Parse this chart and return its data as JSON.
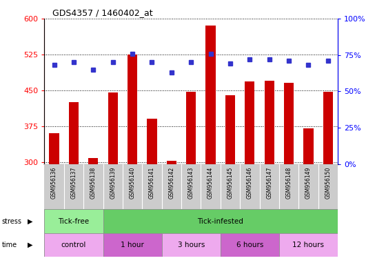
{
  "title": "GDS4357 / 1460402_at",
  "samples": [
    "GSM956136",
    "GSM956137",
    "GSM956138",
    "GSM956139",
    "GSM956140",
    "GSM956141",
    "GSM956142",
    "GSM956143",
    "GSM956144",
    "GSM956145",
    "GSM956146",
    "GSM956147",
    "GSM956148",
    "GSM956149",
    "GSM956150"
  ],
  "counts": [
    360,
    425,
    308,
    445,
    525,
    390,
    302,
    447,
    585,
    440,
    468,
    470,
    465,
    370,
    447
  ],
  "percentiles": [
    68,
    70,
    65,
    70,
    76,
    70,
    63,
    70,
    76,
    69,
    72,
    72,
    71,
    68,
    71
  ],
  "ylim_left": [
    295,
    600
  ],
  "ylim_right": [
    0,
    100
  ],
  "yticks_left": [
    300,
    375,
    450,
    525,
    600
  ],
  "yticks_right": [
    0,
    25,
    50,
    75,
    100
  ],
  "bar_color": "#cc0000",
  "dot_color": "#3333cc",
  "bar_width": 0.5,
  "stress_groups": [
    {
      "label": "Tick-free",
      "start": 0,
      "end": 3,
      "color": "#99ee99"
    },
    {
      "label": "Tick-infested",
      "start": 3,
      "end": 15,
      "color": "#66cc66"
    }
  ],
  "time_groups": [
    {
      "label": "control",
      "start": 0,
      "end": 3,
      "color": "#eeaaee"
    },
    {
      "label": "1 hour",
      "start": 3,
      "end": 6,
      "color": "#cc66cc"
    },
    {
      "label": "3 hours",
      "start": 6,
      "end": 9,
      "color": "#eeaaee"
    },
    {
      "label": "6 hours",
      "start": 9,
      "end": 12,
      "color": "#cc66cc"
    },
    {
      "label": "12 hours",
      "start": 12,
      "end": 15,
      "color": "#eeaaee"
    }
  ],
  "tick_label_bg": "#cccccc"
}
